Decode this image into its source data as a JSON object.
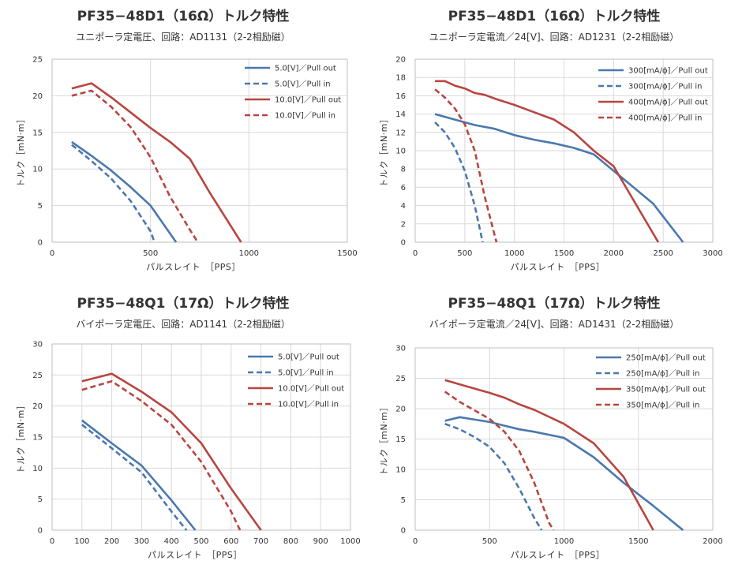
{
  "colors": {
    "blue": "#4a78ae",
    "red": "#b84540",
    "grid": "#d9d9d9",
    "text": "#333333"
  },
  "chart_data": [
    {
      "type": "line",
      "title": "PF35−48D1（16Ω）トルク特性",
      "subtitle": "ユニポーラ定電圧、回路：AD1131（2-2相励磁）",
      "xlabel": "パルスレイト　［PPS］",
      "ylabel": "トルク［mN·m］",
      "xlim": [
        0,
        1500
      ],
      "ylim": [
        0,
        25
      ],
      "xticks": [
        "0",
        "500",
        "1000",
        "1500"
      ],
      "yticks": [
        "0",
        "5",
        "10",
        "15",
        "20",
        "25"
      ],
      "grid": true,
      "legend": "top-right",
      "series": [
        {
          "name": "5.0[V]／Pull out",
          "color": "blue",
          "dash": false,
          "x": [
            100,
            200,
            300,
            400,
            500,
            630
          ],
          "y": [
            13.7,
            11.8,
            9.8,
            7.5,
            5.0,
            0
          ]
        },
        {
          "name": "5.0[V]／Pull in",
          "color": "blue",
          "dash": true,
          "x": [
            100,
            200,
            300,
            400,
            500,
            520
          ],
          "y": [
            13.3,
            11.1,
            8.7,
            5.6,
            1.5,
            0
          ]
        },
        {
          "name": "10.0[V]／Pull out",
          "color": "red",
          "dash": false,
          "x": [
            100,
            200,
            300,
            400,
            500,
            600,
            700,
            800,
            960
          ],
          "y": [
            21.0,
            21.7,
            19.8,
            17.7,
            15.6,
            13.7,
            11.4,
            6.8,
            0
          ]
        },
        {
          "name": "10.0[V]／Pull in",
          "color": "red",
          "dash": true,
          "x": [
            100,
            200,
            300,
            400,
            500,
            600,
            700,
            740
          ],
          "y": [
            20.0,
            20.7,
            18.5,
            15.7,
            11.6,
            6.2,
            1.7,
            0
          ]
        }
      ]
    },
    {
      "type": "line",
      "title": "PF35−48D1（16Ω）トルク特性",
      "subtitle": "ユニポーラ定電流／24[V]、回路：AD1231（2-2相励磁）",
      "xlabel": "パルスレイト　［PPS］",
      "ylabel": "トルク［mN·m］",
      "xlim": [
        0,
        3000
      ],
      "ylim": [
        0,
        20
      ],
      "xticks": [
        "0",
        "500",
        "1000",
        "1500",
        "2000",
        "2500",
        "3000"
      ],
      "yticks": [
        "0",
        "2",
        "4",
        "6",
        "8",
        "10",
        "12",
        "14",
        "16",
        "18",
        "20"
      ],
      "grid": true,
      "legend": "top-right",
      "series": [
        {
          "name": "300[mA/ϕ]／Pull out",
          "color": "blue",
          "dash": false,
          "x": [
            200,
            400,
            600,
            800,
            1000,
            1200,
            1400,
            1600,
            1800,
            2000,
            2200,
            2400,
            2700
          ],
          "y": [
            14.0,
            13.4,
            12.8,
            12.4,
            11.7,
            11.2,
            10.8,
            10.3,
            9.6,
            7.8,
            6.0,
            4.2,
            0
          ]
        },
        {
          "name": "300[mA/ϕ]／Pull in",
          "color": "blue",
          "dash": true,
          "x": [
            200,
            300,
            400,
            500,
            600,
            650,
            680
          ],
          "y": [
            13.1,
            12.0,
            10.3,
            7.8,
            4.0,
            1.5,
            0
          ]
        },
        {
          "name": "400[mA/ϕ]／Pull out",
          "color": "red",
          "dash": false,
          "x": [
            200,
            300,
            400,
            500,
            600,
            700,
            800,
            1000,
            1200,
            1400,
            1600,
            1800,
            2000,
            2200,
            2450
          ],
          "y": [
            17.6,
            17.6,
            17.1,
            16.8,
            16.3,
            16.1,
            15.7,
            15.0,
            14.2,
            13.4,
            12.0,
            10.0,
            8.3,
            4.6,
            0
          ]
        },
        {
          "name": "400[mA/ϕ]／Pull in",
          "color": "red",
          "dash": true,
          "x": [
            200,
            300,
            400,
            500,
            600,
            700,
            800,
            820
          ],
          "y": [
            16.7,
            15.8,
            14.6,
            12.9,
            10.0,
            5.0,
            0.8,
            0
          ]
        }
      ]
    },
    {
      "type": "line",
      "title": "PF35−48Q1（17Ω）トルク特性",
      "subtitle": "バイポーラ定電圧、回路：AD1141（2-2相励磁）",
      "xlabel": "パルスレイト　［PPS］",
      "ylabel": "トルク［mN·m］",
      "xlim": [
        0,
        1000
      ],
      "ylim": [
        0,
        30
      ],
      "xticks": [
        "0",
        "100",
        "200",
        "300",
        "400",
        "500",
        "600",
        "700",
        "800",
        "900",
        "1000"
      ],
      "yticks": [
        "0",
        "5",
        "10",
        "15",
        "20",
        "25",
        "30"
      ],
      "grid": true,
      "legend": "top-right",
      "series": [
        {
          "name": "5.0[V]／Pull out",
          "color": "blue",
          "dash": false,
          "x": [
            100,
            200,
            300,
            400,
            480
          ],
          "y": [
            17.7,
            14.0,
            10.4,
            4.8,
            0
          ]
        },
        {
          "name": "5.0[V]／Pull in",
          "color": "blue",
          "dash": true,
          "x": [
            100,
            200,
            300,
            400,
            450
          ],
          "y": [
            17.0,
            13.2,
            9.3,
            3.0,
            0
          ]
        },
        {
          "name": "10.0[V]／Pull out",
          "color": "red",
          "dash": false,
          "x": [
            100,
            200,
            300,
            400,
            500,
            600,
            700
          ],
          "y": [
            24.0,
            25.2,
            22.3,
            19.0,
            14.0,
            6.7,
            0
          ]
        },
        {
          "name": "10.0[V]／Pull in",
          "color": "red",
          "dash": true,
          "x": [
            100,
            200,
            300,
            400,
            500,
            600,
            630
          ],
          "y": [
            22.6,
            24.0,
            20.8,
            17.0,
            11.0,
            3.0,
            0
          ]
        }
      ]
    },
    {
      "type": "line",
      "title": "PF35−48Q1（17Ω）トルク特性",
      "subtitle": "バイポーラ定電流／24[V]、回路：AD1431（2-2相励磁）",
      "xlabel": "パルスレイト　［PPS］",
      "ylabel": "トルク［mN·m］",
      "xlim": [
        0,
        2000
      ],
      "ylim": [
        0,
        30
      ],
      "xticks": [
        "0",
        "500",
        "1000",
        "1500",
        "2000"
      ],
      "yticks": [
        "0",
        "5",
        "10",
        "15",
        "20",
        "25",
        "30"
      ],
      "grid": true,
      "legend": "top-right",
      "series": [
        {
          "name": "250[mA/ϕ]／Pull out",
          "color": "blue",
          "dash": false,
          "x": [
            200,
            300,
            400,
            500,
            600,
            700,
            800,
            1000,
            1200,
            1400,
            1600,
            1800
          ],
          "y": [
            18.0,
            18.6,
            18.2,
            17.8,
            17.2,
            16.6,
            16.2,
            15.2,
            12.0,
            7.8,
            4.0,
            0
          ]
        },
        {
          "name": "250[mA/ϕ]／Pull in",
          "color": "blue",
          "dash": true,
          "x": [
            200,
            300,
            400,
            500,
            600,
            700,
            800,
            850
          ],
          "y": [
            17.5,
            16.6,
            15.3,
            13.7,
            11.0,
            6.8,
            2.0,
            0
          ]
        },
        {
          "name": "350[mA/ϕ]／Pull out",
          "color": "red",
          "dash": false,
          "x": [
            200,
            300,
            400,
            500,
            600,
            700,
            800,
            1000,
            1200,
            1400,
            1600
          ],
          "y": [
            24.7,
            24.0,
            23.3,
            22.6,
            21.8,
            20.7,
            19.8,
            17.5,
            14.3,
            8.8,
            0
          ]
        },
        {
          "name": "350[mA/ϕ]／Pull in",
          "color": "red",
          "dash": true,
          "x": [
            200,
            300,
            400,
            500,
            600,
            700,
            800,
            900,
            930
          ],
          "y": [
            22.8,
            21.1,
            19.7,
            18.3,
            16.2,
            13.0,
            7.8,
            1.2,
            0
          ]
        }
      ]
    }
  ]
}
